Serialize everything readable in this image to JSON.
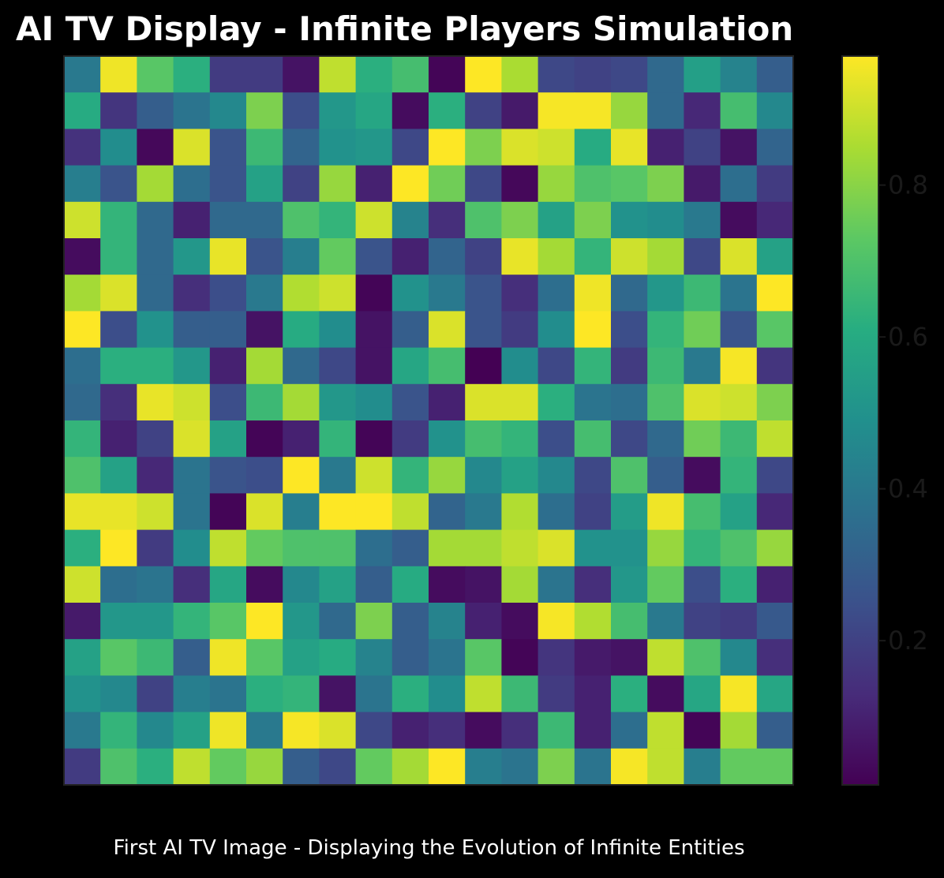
{
  "chart_data": {
    "type": "heatmap",
    "title": "AI TV Display - Infinite Players Simulation",
    "caption": "First AI TV Image - Displaying the Evolution of Infinite Entities",
    "xlabel": "",
    "ylabel": "",
    "colormap": "viridis",
    "colorbar": {
      "range": [
        0.01,
        0.97
      ],
      "ticks": [
        0.2,
        0.4,
        0.6,
        0.8
      ],
      "tick_labels": [
        "0.2",
        "0.4",
        "0.6",
        "0.8"
      ]
    },
    "grid": false,
    "rows": 20,
    "cols": 20,
    "values": [
      [
        0.4,
        0.95,
        0.72,
        0.62,
        0.18,
        0.18,
        0.06,
        0.88,
        0.62,
        0.68,
        0.02,
        0.97,
        0.85,
        0.22,
        0.2,
        0.22,
        0.34,
        0.55,
        0.44,
        0.3
      ],
      [
        0.6,
        0.16,
        0.3,
        0.38,
        0.46,
        0.78,
        0.24,
        0.52,
        0.58,
        0.04,
        0.62,
        0.2,
        0.08,
        0.96,
        0.96,
        0.82,
        0.34,
        0.12,
        0.68,
        0.46
      ],
      [
        0.15,
        0.48,
        0.03,
        0.92,
        0.26,
        0.66,
        0.32,
        0.5,
        0.52,
        0.22,
        0.97,
        0.78,
        0.92,
        0.9,
        0.6,
        0.94,
        0.1,
        0.2,
        0.06,
        0.32
      ],
      [
        0.42,
        0.26,
        0.84,
        0.36,
        0.26,
        0.56,
        0.2,
        0.82,
        0.1,
        0.97,
        0.76,
        0.22,
        0.03,
        0.82,
        0.7,
        0.72,
        0.78,
        0.08,
        0.36,
        0.18
      ],
      [
        0.9,
        0.64,
        0.34,
        0.1,
        0.34,
        0.34,
        0.7,
        0.64,
        0.9,
        0.44,
        0.14,
        0.7,
        0.78,
        0.56,
        0.78,
        0.5,
        0.48,
        0.4,
        0.04,
        0.12
      ],
      [
        0.04,
        0.64,
        0.34,
        0.52,
        0.94,
        0.26,
        0.42,
        0.74,
        0.26,
        0.1,
        0.32,
        0.2,
        0.94,
        0.84,
        0.64,
        0.9,
        0.84,
        0.22,
        0.92,
        0.56
      ],
      [
        0.84,
        0.92,
        0.34,
        0.14,
        0.24,
        0.4,
        0.86,
        0.9,
        0.02,
        0.5,
        0.4,
        0.26,
        0.14,
        0.36,
        0.95,
        0.34,
        0.52,
        0.66,
        0.38,
        0.97
      ],
      [
        0.97,
        0.24,
        0.5,
        0.3,
        0.3,
        0.06,
        0.6,
        0.48,
        0.06,
        0.3,
        0.92,
        0.26,
        0.18,
        0.48,
        0.97,
        0.24,
        0.64,
        0.76,
        0.26,
        0.72
      ],
      [
        0.36,
        0.62,
        0.62,
        0.52,
        0.1,
        0.84,
        0.34,
        0.22,
        0.06,
        0.58,
        0.68,
        0.01,
        0.48,
        0.22,
        0.64,
        0.18,
        0.66,
        0.4,
        0.96,
        0.16
      ],
      [
        0.34,
        0.14,
        0.94,
        0.9,
        0.24,
        0.66,
        0.84,
        0.52,
        0.48,
        0.26,
        0.1,
        0.92,
        0.92,
        0.62,
        0.38,
        0.36,
        0.7,
        0.92,
        0.9,
        0.78
      ],
      [
        0.64,
        0.1,
        0.2,
        0.92,
        0.56,
        0.02,
        0.1,
        0.64,
        0.02,
        0.18,
        0.5,
        0.68,
        0.64,
        0.24,
        0.68,
        0.22,
        0.34,
        0.76,
        0.66,
        0.88
      ],
      [
        0.7,
        0.56,
        0.12,
        0.38,
        0.26,
        0.24,
        0.97,
        0.4,
        0.9,
        0.64,
        0.82,
        0.46,
        0.56,
        0.46,
        0.22,
        0.7,
        0.3,
        0.04,
        0.64,
        0.22
      ],
      [
        0.94,
        0.94,
        0.9,
        0.38,
        0.02,
        0.92,
        0.42,
        0.97,
        0.97,
        0.88,
        0.32,
        0.4,
        0.86,
        0.36,
        0.2,
        0.54,
        0.95,
        0.68,
        0.56,
        0.12
      ],
      [
        0.62,
        0.97,
        0.18,
        0.48,
        0.88,
        0.74,
        0.7,
        0.7,
        0.36,
        0.3,
        0.84,
        0.84,
        0.88,
        0.92,
        0.5,
        0.5,
        0.82,
        0.64,
        0.7,
        0.82
      ],
      [
        0.9,
        0.36,
        0.38,
        0.14,
        0.58,
        0.04,
        0.46,
        0.56,
        0.3,
        0.6,
        0.04,
        0.06,
        0.84,
        0.38,
        0.14,
        0.52,
        0.74,
        0.24,
        0.62,
        0.1
      ],
      [
        0.08,
        0.52,
        0.52,
        0.64,
        0.72,
        0.97,
        0.52,
        0.34,
        0.78,
        0.3,
        0.44,
        0.1,
        0.04,
        0.96,
        0.86,
        0.68,
        0.4,
        0.2,
        0.18,
        0.28
      ],
      [
        0.56,
        0.72,
        0.66,
        0.3,
        0.95,
        0.72,
        0.56,
        0.6,
        0.44,
        0.3,
        0.38,
        0.72,
        0.02,
        0.16,
        0.08,
        0.06,
        0.88,
        0.7,
        0.46,
        0.14
      ],
      [
        0.5,
        0.46,
        0.2,
        0.42,
        0.38,
        0.62,
        0.64,
        0.06,
        0.38,
        0.62,
        0.48,
        0.88,
        0.66,
        0.18,
        0.1,
        0.62,
        0.04,
        0.58,
        0.96,
        0.58
      ],
      [
        0.4,
        0.64,
        0.46,
        0.56,
        0.95,
        0.4,
        0.96,
        0.92,
        0.22,
        0.1,
        0.14,
        0.04,
        0.14,
        0.66,
        0.1,
        0.36,
        0.88,
        0.02,
        0.84,
        0.3
      ],
      [
        0.18,
        0.7,
        0.62,
        0.88,
        0.74,
        0.82,
        0.3,
        0.22,
        0.74,
        0.84,
        0.97,
        0.42,
        0.38,
        0.78,
        0.38,
        0.96,
        0.88,
        0.42,
        0.74,
        0.74
      ]
    ]
  }
}
